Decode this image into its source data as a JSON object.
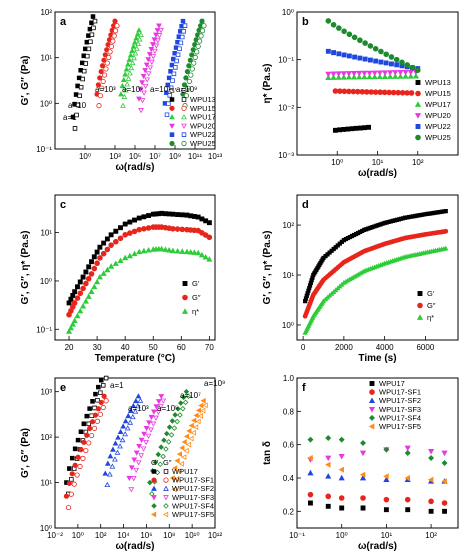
{
  "chart_data": [
    {
      "id": "a",
      "type": "scatter",
      "panel_label": "a",
      "xlabel": "ω(rad/s)",
      "ylabel": "G′, G″ (Pa)",
      "xscale": "log",
      "yscale": "log",
      "xlim": [
        0.001,
        10000000000000.0
      ],
      "ylim": [
        0.1,
        100
      ],
      "xticks": [
        {
          "v": 1,
          "t": "10⁰"
        },
        {
          "v": 1000,
          "t": "10³"
        },
        {
          "v": 100000,
          "t": "10⁵"
        },
        {
          "v": 10000000,
          "t": "10⁷"
        },
        {
          "v": 1000000000,
          "t": "10⁹"
        },
        {
          "v": 100000000000,
          "t": "10¹¹"
        },
        {
          "v": 10000000000000,
          "t": "10¹³"
        }
      ],
      "yticks": [
        {
          "v": 0.1,
          "t": "10⁻¹"
        },
        {
          "v": 1,
          "t": "10⁰"
        },
        {
          "v": 10,
          "t": "10¹"
        },
        {
          "v": 100,
          "t": "10²"
        }
      ],
      "legend_position": "lower-right",
      "legend_header": [
        "G′",
        "G″"
      ],
      "annotations": [
        "a=1",
        "a=10",
        "a=10³",
        "a=10⁵",
        "a=10⁷",
        "a=10⁹"
      ],
      "series": [
        {
          "name": "WPU13",
          "color": "#000000",
          "logx": [
            -1.2,
            0.8
          ],
          "logy": [
            -0.3,
            1.9
          ]
        },
        {
          "name": "WPU15",
          "color": "#e8251c",
          "logx": [
            1.2,
            3.0
          ],
          "logy": [
            0.2,
            1.8
          ]
        },
        {
          "name": "WPU17",
          "color": "#2ecc3a",
          "logx": [
            3.6,
            5.4
          ],
          "logy": [
            0.2,
            1.6
          ]
        },
        {
          "name": "WPU20",
          "color": "#e838e0",
          "logx": [
            5.4,
            7.4
          ],
          "logy": [
            0.1,
            1.7
          ]
        },
        {
          "name": "WPU22",
          "color": "#2047e0",
          "logx": [
            8.0,
            9.8
          ],
          "logy": [
            0.0,
            1.8
          ]
        },
        {
          "name": "WPU25",
          "color": "#1e8a2e",
          "logx": [
            9.8,
            11.7
          ],
          "logy": [
            0.2,
            1.8
          ]
        }
      ]
    },
    {
      "id": "b",
      "type": "scatter",
      "panel_label": "b",
      "xlabel": "ω(rad/s)",
      "ylabel": "η* (Pa.s)",
      "xscale": "log",
      "yscale": "log",
      "xlim": [
        0.1,
        1000
      ],
      "ylim": [
        0.001,
        1
      ],
      "xticks": [
        {
          "v": 1,
          "t": "10⁰"
        },
        {
          "v": 10,
          "t": "10¹"
        },
        {
          "v": 100,
          "t": "10²"
        }
      ],
      "yticks": [
        {
          "v": 0.001,
          "t": "10⁻³"
        },
        {
          "v": 0.01,
          "t": "10⁻²"
        },
        {
          "v": 0.1,
          "t": "10⁻¹"
        },
        {
          "v": 1,
          "t": "10⁰"
        }
      ],
      "legend_position": "right",
      "series": [
        {
          "name": "WPU13",
          "color": "#000000",
          "marker": "square",
          "x": [
            0.9,
            6
          ],
          "y": [
            0.0033,
            0.0038
          ]
        },
        {
          "name": "WPU15",
          "color": "#e8251c",
          "marker": "circle",
          "x": [
            0.9,
            70
          ],
          "y": [
            0.022,
            0.02
          ]
        },
        {
          "name": "WPU17",
          "color": "#2ecc3a",
          "marker": "triangle",
          "x": [
            0.6,
            90
          ],
          "y": [
            0.042,
            0.045
          ]
        },
        {
          "name": "WPU20",
          "color": "#e838e0",
          "marker": "triangle-down",
          "x": [
            0.6,
            90
          ],
          "y": [
            0.05,
            0.055
          ]
        },
        {
          "name": "WPU22",
          "color": "#2047e0",
          "marker": "square",
          "x": [
            0.6,
            100
          ],
          "y": [
            0.15,
            0.065
          ]
        },
        {
          "name": "WPU25",
          "color": "#1e8a2e",
          "marker": "circle",
          "x": [
            0.6,
            100
          ],
          "y": [
            0.65,
            0.06
          ]
        }
      ]
    },
    {
      "id": "c",
      "type": "scatter",
      "panel_label": "c",
      "xlabel": "Temperature (°C)",
      "ylabel": "G′, G″, η* (Pa.s)",
      "xscale": "linear",
      "yscale": "log",
      "xlim": [
        15,
        72
      ],
      "ylim": [
        0.06,
        60
      ],
      "xticks": [
        {
          "v": 20,
          "t": "20"
        },
        {
          "v": 30,
          "t": "30"
        },
        {
          "v": 40,
          "t": "40"
        },
        {
          "v": 50,
          "t": "50"
        },
        {
          "v": 60,
          "t": "60"
        },
        {
          "v": 70,
          "t": "70"
        }
      ],
      "yticks": [
        {
          "v": 0.1,
          "t": "10⁻¹"
        },
        {
          "v": 1,
          "t": "10⁰"
        },
        {
          "v": 10,
          "t": "10¹"
        }
      ],
      "legend_position": "lower-right",
      "series": [
        {
          "name": "G′",
          "color": "#000000",
          "marker": "square",
          "x": [
            20,
            22,
            25,
            28,
            31,
            35,
            40,
            45,
            50,
            53,
            57,
            62,
            66,
            70
          ],
          "y": [
            0.35,
            0.6,
            1.2,
            2.5,
            5,
            9,
            15,
            20,
            24,
            25,
            24,
            23,
            21,
            16
          ]
        },
        {
          "name": "G″",
          "color": "#e8251c",
          "marker": "circle",
          "x": [
            20,
            22,
            25,
            28,
            31,
            35,
            40,
            45,
            50,
            53,
            57,
            62,
            66,
            70
          ],
          "y": [
            0.2,
            0.35,
            0.7,
            1.4,
            3,
            5.5,
            9,
            11.5,
            13,
            13,
            12,
            11.5,
            11,
            8
          ]
        },
        {
          "name": "η*",
          "color": "#2ecc3a",
          "marker": "triangle",
          "x": [
            20,
            22,
            25,
            28,
            31,
            35,
            40,
            45,
            50,
            53,
            57,
            62,
            66,
            70
          ],
          "y": [
            0.09,
            0.15,
            0.3,
            0.6,
            1.2,
            2,
            3,
            4,
            4.5,
            4.6,
            4.2,
            4,
            3.8,
            2.8
          ]
        }
      ]
    },
    {
      "id": "d",
      "type": "scatter",
      "panel_label": "d",
      "xlabel": "Time (s)",
      "ylabel": "G′, G″, η* (Pa.s)",
      "xscale": "linear",
      "yscale": "log",
      "xlim": [
        -300,
        7600
      ],
      "ylim": [
        0.5,
        400
      ],
      "xticks": [
        {
          "v": 0,
          "t": "0"
        },
        {
          "v": 2000,
          "t": "2000"
        },
        {
          "v": 4000,
          "t": "4000"
        },
        {
          "v": 6000,
          "t": "6000"
        }
      ],
      "yticks": [
        {
          "v": 1,
          "t": "10⁰"
        },
        {
          "v": 10,
          "t": "10¹"
        },
        {
          "v": 100,
          "t": "10²"
        }
      ],
      "legend_position": "lower-right",
      "series": [
        {
          "name": "G′",
          "color": "#000000",
          "marker": "square",
          "x": [
            100,
            500,
            1000,
            2000,
            3000,
            4000,
            5000,
            6000,
            7000
          ],
          "y": [
            3,
            10,
            22,
            50,
            80,
            110,
            140,
            165,
            190
          ]
        },
        {
          "name": "G″",
          "color": "#e8251c",
          "marker": "circle",
          "x": [
            100,
            500,
            1000,
            2000,
            3000,
            4000,
            5000,
            6000,
            7000
          ],
          "y": [
            1.5,
            4,
            8,
            18,
            30,
            42,
            55,
            65,
            75
          ]
        },
        {
          "name": "η*",
          "color": "#2ecc3a",
          "marker": "triangle",
          "x": [
            100,
            500,
            1000,
            2000,
            3000,
            4000,
            5000,
            6000,
            7000
          ],
          "y": [
            0.7,
            1.5,
            3,
            7,
            12,
            17,
            23,
            28,
            34
          ]
        }
      ]
    },
    {
      "id": "e",
      "type": "scatter",
      "panel_label": "e",
      "xlabel": "ω(rad/s)",
      "ylabel": "G′, G″ (Pa)",
      "xscale": "log",
      "yscale": "log",
      "xlim": [
        0.01,
        1000000000000.0
      ],
      "ylim": [
        1,
        2000
      ],
      "xticks": [
        {
          "v": 0.01,
          "t": "10⁻²"
        },
        {
          "v": 1,
          "t": "10⁰"
        },
        {
          "v": 100,
          "t": "10²"
        },
        {
          "v": 10000,
          "t": "10⁴"
        },
        {
          "v": 1000000,
          "t": "10⁶"
        },
        {
          "v": 100000000,
          "t": "10⁸"
        },
        {
          "v": 10000000000,
          "t": "10¹⁰"
        },
        {
          "v": 1000000000000,
          "t": "10¹²"
        }
      ],
      "yticks": [
        {
          "v": 1,
          "t": "10⁰"
        },
        {
          "v": 10,
          "t": "10¹"
        },
        {
          "v": 100,
          "t": "10²"
        },
        {
          "v": 1000,
          "t": "10³"
        }
      ],
      "legend_position": "lower-right",
      "legend_header": [
        "G′",
        "G″"
      ],
      "annotations": [
        "a=1",
        "a=10³",
        "a=10⁵",
        "a=10⁷",
        "a=10⁹"
      ],
      "series": [
        {
          "name": "WPU17",
          "color": "#000000",
          "logx": [
            -1.0,
            2.3
          ],
          "logy": [
            1.0,
            3.4
          ]
        },
        {
          "name": "WPU17-SF1",
          "color": "#e8251c",
          "logx": [
            -1.0,
            2.3
          ],
          "logy": [
            0.7,
            2.9
          ]
        },
        {
          "name": "WPU17-SF2",
          "color": "#2047e0",
          "logx": [
            2.4,
            5.3
          ],
          "logy": [
            1.2,
            2.9
          ]
        },
        {
          "name": "WPU17-SF3",
          "color": "#e838e0",
          "logx": [
            4.5,
            7.3
          ],
          "logy": [
            1.1,
            2.9
          ]
        },
        {
          "name": "WPU17-SF4",
          "color": "#1e8a2e",
          "logx": [
            6.3,
            9.5
          ],
          "logy": [
            1.0,
            3.0
          ]
        },
        {
          "name": "WPU17-SF5",
          "color": "#ff8c1a",
          "logx": [
            8.3,
            11.0
          ],
          "logy": [
            1.1,
            2.8
          ]
        }
      ]
    },
    {
      "id": "f",
      "type": "scatter",
      "panel_label": "f",
      "xlabel": "ω(rad/s)",
      "ylabel": "tan δ",
      "xscale": "log",
      "yscale": "linear",
      "xlim": [
        0.1,
        400
      ],
      "ylim": [
        0.1,
        1.0
      ],
      "xticks": [
        {
          "v": 0.1,
          "t": "10⁻¹"
        },
        {
          "v": 1,
          "t": "10⁰"
        },
        {
          "v": 10,
          "t": "10¹"
        },
        {
          "v": 100,
          "t": "10²"
        }
      ],
      "yticks": [
        {
          "v": 0.2,
          "t": "0.2"
        },
        {
          "v": 0.4,
          "t": "0.4"
        },
        {
          "v": 0.6,
          "t": "0.6"
        },
        {
          "v": 0.8,
          "t": "0.8"
        },
        {
          "v": 1.0,
          "t": "1.0"
        }
      ],
      "legend_position": "top-right",
      "series": [
        {
          "name": "WPU17",
          "color": "#000000",
          "marker": "square",
          "x": [
            0.2,
            0.5,
            1,
            3,
            10,
            30,
            100,
            200
          ],
          "y": [
            0.25,
            0.23,
            0.22,
            0.22,
            0.21,
            0.21,
            0.2,
            0.2
          ]
        },
        {
          "name": "WPU17-SF1",
          "color": "#e8251c",
          "marker": "circle",
          "x": [
            0.2,
            0.5,
            1,
            3,
            10,
            30,
            100,
            200
          ],
          "y": [
            0.3,
            0.29,
            0.28,
            0.28,
            0.27,
            0.27,
            0.26,
            0.25
          ]
        },
        {
          "name": "WPU17-SF2",
          "color": "#2047e0",
          "marker": "triangle",
          "x": [
            0.2,
            0.5,
            1,
            3,
            10,
            30,
            100,
            200
          ],
          "y": [
            0.43,
            0.41,
            0.4,
            0.4,
            0.39,
            0.39,
            0.38,
            0.38
          ]
        },
        {
          "name": "WPU17-SF3",
          "color": "#e838e0",
          "marker": "triangle-down",
          "x": [
            0.2,
            0.5,
            1,
            3,
            10,
            30,
            100,
            200
          ],
          "y": [
            0.51,
            0.52,
            0.53,
            0.55,
            0.57,
            0.58,
            0.56,
            0.55
          ]
        },
        {
          "name": "WPU17-SF4",
          "color": "#1e8a2e",
          "marker": "diamond",
          "x": [
            0.2,
            0.5,
            1,
            3,
            10,
            30,
            100,
            200
          ],
          "y": [
            0.63,
            0.64,
            0.63,
            0.61,
            0.57,
            0.55,
            0.52,
            0.49
          ]
        },
        {
          "name": "WPU17-SF5",
          "color": "#ff8c1a",
          "marker": "triangle-left",
          "x": [
            0.2,
            0.5,
            1,
            3,
            10,
            30,
            100,
            200
          ],
          "y": [
            0.52,
            0.48,
            0.45,
            0.42,
            0.41,
            0.4,
            0.39,
            0.38
          ]
        }
      ]
    }
  ]
}
